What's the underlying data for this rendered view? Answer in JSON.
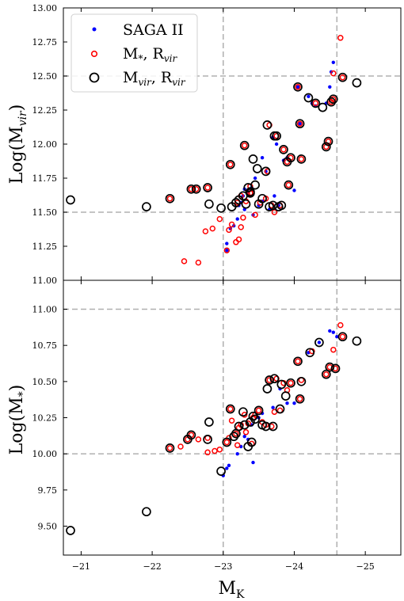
{
  "chart_data": [
    {
      "type": "scatter",
      "panel": "top",
      "ylabel": "Log(M",
      "ylabel_sub": "vir",
      "ylabel_close": ")",
      "xlim": [
        -20.75,
        -25.5
      ],
      "ylim": [
        11.0,
        13.0
      ],
      "xaxis_inverted": true,
      "yticks": [
        11.0,
        11.25,
        11.5,
        11.75,
        12.0,
        12.25,
        12.5,
        12.75,
        13.0
      ],
      "ytick_labels": [
        "11.00",
        "11.25",
        "11.50",
        "11.75",
        "12.00",
        "12.25",
        "12.50",
        "12.75",
        "13.00"
      ],
      "reference_lines": {
        "x": [
          -23.0,
          -24.6
        ],
        "y": [
          11.5,
          12.5
        ]
      },
      "legend": {
        "placement": "upper-left",
        "entries": [
          {
            "label": "SAGA II",
            "marker": "dot",
            "color": "#0000ff"
          },
          {
            "label": "M",
            "sub": "*",
            "rest": ", R",
            "sub2": "vir",
            "marker": "ring-small",
            "color": "#ff0000"
          },
          {
            "label": "M",
            "sub": "vir",
            "rest": ", R",
            "sub2": "vir",
            "marker": "ring-large",
            "color": "#000000"
          }
        ]
      },
      "series": [
        {
          "name": "SAGA II",
          "points": [
            [
              -23.05,
              11.27
            ],
            [
              -23.1,
              11.38
            ],
            [
              -23.2,
              11.45
            ],
            [
              -23.22,
              11.55
            ],
            [
              -23.25,
              11.57
            ],
            [
              -23.28,
              11.62
            ],
            [
              -23.3,
              11.67
            ],
            [
              -23.35,
              11.65
            ],
            [
              -23.42,
              11.48
            ],
            [
              -23.5,
              11.55
            ],
            [
              -23.55,
              11.58
            ],
            [
              -23.6,
              11.8
            ],
            [
              -23.65,
              11.52
            ],
            [
              -23.7,
              12.05
            ],
            [
              -23.72,
              11.62
            ],
            [
              -23.75,
              12.0
            ],
            [
              -23.78,
              11.55
            ],
            [
              -23.85,
              11.88
            ],
            [
              -24.0,
              11.66
            ],
            [
              -24.05,
              12.42
            ],
            [
              -24.08,
              12.15
            ],
            [
              -24.2,
              12.35
            ],
            [
              -24.25,
              12.3
            ],
            [
              -24.3,
              12.28
            ],
            [
              -24.45,
              12.3
            ],
            [
              -24.5,
              12.42
            ],
            [
              -24.52,
              12.53
            ],
            [
              -24.55,
              12.6
            ],
            [
              -23.05,
              11.22
            ],
            [
              -23.15,
              11.4
            ],
            [
              -23.3,
              11.52
            ],
            [
              -23.4,
              11.68
            ],
            [
              -23.45,
              11.75
            ],
            [
              -23.55,
              11.9
            ],
            [
              -23.9,
              11.9
            ]
          ]
        },
        {
          "name": "M*, Rvir",
          "points": [
            [
              -22.45,
              11.14
            ],
            [
              -22.65,
              11.13
            ],
            [
              -22.75,
              11.36
            ],
            [
              -22.85,
              11.38
            ],
            [
              -22.95,
              11.45
            ],
            [
              -23.05,
              11.22
            ],
            [
              -23.08,
              11.37
            ],
            [
              -23.12,
              11.41
            ],
            [
              -23.18,
              11.28
            ],
            [
              -23.22,
              11.3
            ],
            [
              -23.25,
              11.39
            ],
            [
              -23.28,
              11.46
            ],
            [
              -23.1,
              11.85
            ],
            [
              -23.2,
              11.57
            ],
            [
              -23.25,
              11.62
            ],
            [
              -23.3,
              11.99
            ],
            [
              -23.32,
              11.58
            ],
            [
              -23.38,
              11.69
            ],
            [
              -23.4,
              11.64
            ],
            [
              -23.45,
              11.48
            ],
            [
              -23.52,
              11.57
            ],
            [
              -23.6,
              11.6
            ],
            [
              -23.62,
              11.8
            ],
            [
              -23.65,
              12.14
            ],
            [
              -23.68,
              11.55
            ],
            [
              -23.72,
              11.5
            ],
            [
              -23.75,
              12.06
            ],
            [
              -23.8,
              11.55
            ],
            [
              -23.85,
              11.96
            ],
            [
              -23.9,
              11.87
            ],
            [
              -23.92,
              11.7
            ],
            [
              -23.95,
              11.9
            ],
            [
              -24.05,
              12.42
            ],
            [
              -24.08,
              12.15
            ],
            [
              -24.1,
              11.89
            ],
            [
              -24.3,
              12.3
            ],
            [
              -24.45,
              11.98
            ],
            [
              -24.48,
              12.02
            ],
            [
              -24.52,
              12.31
            ],
            [
              -24.55,
              12.33
            ],
            [
              -24.55,
              12.52
            ],
            [
              -24.68,
              12.49
            ],
            [
              -24.65,
              12.78
            ],
            [
              -22.25,
              11.6
            ],
            [
              -22.55,
              11.67
            ],
            [
              -22.62,
              11.67
            ],
            [
              -22.78,
              11.68
            ],
            [
              -23.38,
              11.64
            ]
          ]
        },
        {
          "name": "Mvir, Rvir",
          "points": [
            [
              -20.85,
              11.59
            ],
            [
              -21.92,
              11.54
            ],
            [
              -22.25,
              11.6
            ],
            [
              -22.55,
              11.67
            ],
            [
              -22.62,
              11.67
            ],
            [
              -22.78,
              11.68
            ],
            [
              -22.8,
              11.56
            ],
            [
              -22.97,
              11.53
            ],
            [
              -23.1,
              11.85
            ],
            [
              -23.12,
              11.54
            ],
            [
              -23.18,
              11.57
            ],
            [
              -23.22,
              11.59
            ],
            [
              -23.28,
              11.62
            ],
            [
              -23.3,
              11.99
            ],
            [
              -23.32,
              11.56
            ],
            [
              -23.35,
              11.68
            ],
            [
              -23.38,
              11.64
            ],
            [
              -23.42,
              11.89
            ],
            [
              -23.48,
              11.82
            ],
            [
              -23.5,
              11.56
            ],
            [
              -23.55,
              11.6
            ],
            [
              -23.6,
              11.8
            ],
            [
              -23.62,
              12.14
            ],
            [
              -23.65,
              11.54
            ],
            [
              -23.7,
              11.55
            ],
            [
              -23.72,
              12.06
            ],
            [
              -23.75,
              12.06
            ],
            [
              -23.78,
              11.54
            ],
            [
              -23.85,
              11.96
            ],
            [
              -23.9,
              11.87
            ],
            [
              -23.92,
              11.7
            ],
            [
              -23.95,
              11.9
            ],
            [
              -24.05,
              12.42
            ],
            [
              -24.08,
              12.15
            ],
            [
              -24.1,
              11.89
            ],
            [
              -24.2,
              12.34
            ],
            [
              -24.3,
              12.3
            ],
            [
              -24.4,
              12.27
            ],
            [
              -24.45,
              11.98
            ],
            [
              -24.48,
              12.02
            ],
            [
              -24.52,
              12.31
            ],
            [
              -24.55,
              12.33
            ],
            [
              -24.68,
              12.49
            ],
            [
              -24.88,
              12.45
            ],
            [
              -23.45,
              11.7
            ],
            [
              -23.38,
              11.65
            ],
            [
              -23.82,
              11.55
            ]
          ]
        }
      ]
    },
    {
      "type": "scatter",
      "panel": "bottom",
      "xlabel": "M",
      "xlabel_sub": "K",
      "ylabel": "Log(M",
      "ylabel_sub": "*",
      "ylabel_close": ")",
      "xlim": [
        -20.75,
        -25.5
      ],
      "ylim": [
        9.3,
        11.2
      ],
      "xaxis_inverted": true,
      "xticks": [
        -21,
        -22,
        -23,
        -24,
        -25
      ],
      "xtick_labels": [
        "−21",
        "−22",
        "−23",
        "−24",
        "−25"
      ],
      "yticks": [
        9.5,
        9.75,
        10.0,
        10.25,
        10.5,
        10.75,
        11.0
      ],
      "ytick_labels": [
        "9.50",
        "9.75",
        "10.00",
        "10.25",
        "10.50",
        "10.75",
        "11.00"
      ],
      "reference_lines": {
        "x": [
          -23.0,
          -24.6
        ],
        "y": [
          10.0,
          11.0
        ]
      },
      "series": [
        {
          "name": "SAGA II",
          "points": [
            [
              -23.0,
              9.85
            ],
            [
              -23.05,
              9.9
            ],
            [
              -23.08,
              9.92
            ],
            [
              -23.42,
              9.94
            ],
            [
              -23.2,
              10.0
            ],
            [
              -23.25,
              10.05
            ],
            [
              -23.3,
              10.12
            ],
            [
              -23.35,
              10.1
            ],
            [
              -23.4,
              10.2
            ],
            [
              -23.5,
              10.25
            ],
            [
              -23.55,
              10.28
            ],
            [
              -23.7,
              10.32
            ],
            [
              -23.8,
              10.45
            ],
            [
              -23.9,
              10.35
            ],
            [
              -24.0,
              10.35
            ],
            [
              -24.2,
              10.7
            ],
            [
              -24.35,
              10.77
            ],
            [
              -24.5,
              10.85
            ],
            [
              -24.55,
              10.84
            ],
            [
              -24.6,
              10.81
            ]
          ]
        },
        {
          "name": "M*, Rvir",
          "points": [
            [
              -22.25,
              10.04
            ],
            [
              -22.4,
              10.05
            ],
            [
              -22.5,
              10.1
            ],
            [
              -22.55,
              10.13
            ],
            [
              -22.65,
              10.1
            ],
            [
              -22.78,
              10.11
            ],
            [
              -22.78,
              10.01
            ],
            [
              -22.88,
              10.02
            ],
            [
              -22.95,
              10.03
            ],
            [
              -23.05,
              10.08
            ],
            [
              -23.08,
              10.11
            ],
            [
              -23.1,
              10.31
            ],
            [
              -23.12,
              10.23
            ],
            [
              -23.18,
              10.14
            ],
            [
              -23.2,
              10.06
            ],
            [
              -23.22,
              10.18
            ],
            [
              -23.25,
              10.2
            ],
            [
              -23.3,
              10.27
            ],
            [
              -23.32,
              10.15
            ],
            [
              -23.35,
              10.21
            ],
            [
              -23.4,
              10.07
            ],
            [
              -23.42,
              10.25
            ],
            [
              -23.45,
              10.27
            ],
            [
              -23.5,
              10.3
            ],
            [
              -23.55,
              10.22
            ],
            [
              -23.6,
              10.2
            ],
            [
              -23.65,
              10.51
            ],
            [
              -23.68,
              10.19
            ],
            [
              -23.72,
              10.29
            ],
            [
              -23.75,
              10.52
            ],
            [
              -23.8,
              10.3
            ],
            [
              -23.85,
              10.49
            ],
            [
              -23.9,
              10.44
            ],
            [
              -23.95,
              10.49
            ],
            [
              -24.05,
              10.64
            ],
            [
              -24.08,
              10.38
            ],
            [
              -24.1,
              10.51
            ],
            [
              -24.25,
              10.71
            ],
            [
              -24.45,
              10.55
            ],
            [
              -24.5,
              10.6
            ],
            [
              -24.55,
              10.72
            ],
            [
              -24.58,
              10.59
            ],
            [
              -24.68,
              10.81
            ],
            [
              -24.65,
              10.89
            ]
          ]
        },
        {
          "name": "Mvir, Rvir",
          "points": [
            [
              -20.85,
              9.47
            ],
            [
              -21.92,
              9.6
            ],
            [
              -22.25,
              10.04
            ],
            [
              -22.5,
              10.1
            ],
            [
              -22.55,
              10.13
            ],
            [
              -22.78,
              10.1
            ],
            [
              -22.8,
              10.22
            ],
            [
              -22.97,
              9.88
            ],
            [
              -23.05,
              10.08
            ],
            [
              -23.1,
              10.31
            ],
            [
              -23.15,
              10.12
            ],
            [
              -23.18,
              10.14
            ],
            [
              -23.22,
              10.19
            ],
            [
              -23.28,
              10.29
            ],
            [
              -23.3,
              10.2
            ],
            [
              -23.35,
              10.05
            ],
            [
              -23.38,
              10.22
            ],
            [
              -23.42,
              10.26
            ],
            [
              -23.45,
              10.24
            ],
            [
              -23.5,
              10.3
            ],
            [
              -23.55,
              10.2
            ],
            [
              -23.6,
              10.19
            ],
            [
              -23.65,
              10.51
            ],
            [
              -23.7,
              10.19
            ],
            [
              -23.72,
              10.52
            ],
            [
              -23.8,
              10.31
            ],
            [
              -23.82,
              10.48
            ],
            [
              -23.88,
              10.4
            ],
            [
              -23.95,
              10.49
            ],
            [
              -24.05,
              10.64
            ],
            [
              -24.08,
              10.38
            ],
            [
              -24.1,
              10.5
            ],
            [
              -24.22,
              10.7
            ],
            [
              -24.35,
              10.77
            ],
            [
              -24.45,
              10.55
            ],
            [
              -24.5,
              10.6
            ],
            [
              -24.58,
              10.59
            ],
            [
              -24.68,
              10.81
            ],
            [
              -24.88,
              10.78
            ],
            [
              -23.4,
              10.08
            ],
            [
              -23.62,
              10.45
            ]
          ]
        }
      ]
    }
  ]
}
